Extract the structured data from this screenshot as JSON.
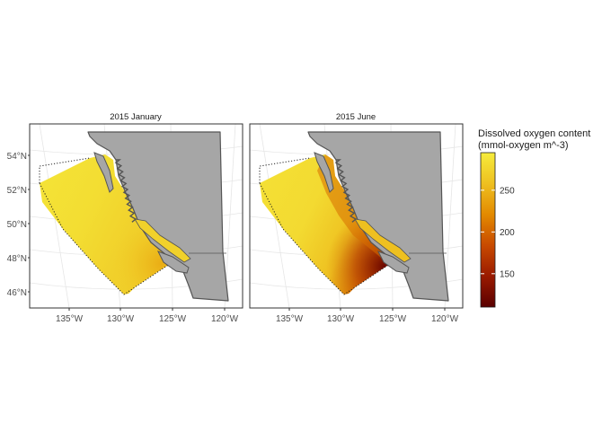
{
  "chart_data": {
    "type": "map",
    "panels": [
      {
        "title": "2015 January",
        "shelf_oxygen": 268,
        "offshore_oxygen": 288,
        "strait_oxygen": 272,
        "south_edge_oxygen": 245
      },
      {
        "title": "2015 June",
        "shelf_oxygen": 205,
        "offshore_oxygen": 286,
        "strait_oxygen": 258,
        "south_edge_oxygen": 120
      }
    ],
    "x_ticks": [
      "135°W",
      "130°W",
      "125°W",
      "120°W"
    ],
    "y_ticks": [
      "46°N",
      "48°N",
      "50°N",
      "52°N",
      "54°N"
    ],
    "legend": {
      "title_line1": "Dissolved oxygen content",
      "title_line2": "(mmol-oxygen m^-3)",
      "ticks": [
        {
          "value": 250,
          "label": "250"
        },
        {
          "value": 200,
          "label": "200"
        },
        {
          "value": 150,
          "label": "150"
        }
      ],
      "min": 110,
      "max": 295,
      "colors": [
        "#5a0000",
        "#9a1a00",
        "#c84a00",
        "#e38a00",
        "#eec020",
        "#f6ec3c"
      ]
    },
    "land_color": "#a6a6a6",
    "coast_color": "#555555"
  }
}
